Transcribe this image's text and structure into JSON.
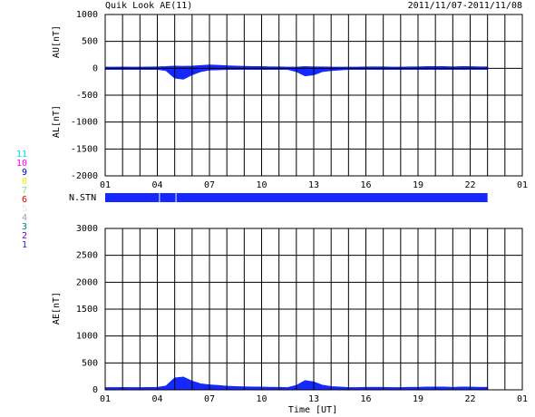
{
  "chart_data": [
    {
      "type": "area",
      "title": "Quik Look AE(11)",
      "subtitle": "2011/11/07-2011/11/08",
      "y_labels": [
        "AU[nT]",
        "AL[nT]"
      ],
      "x": [
        1,
        1.5,
        2,
        2.5,
        3,
        3.5,
        4,
        4.5,
        5,
        5.5,
        6,
        6.5,
        7,
        7.5,
        8,
        8.5,
        9,
        9.5,
        10,
        10.5,
        11,
        11.5,
        12,
        12.5,
        13,
        13.5,
        14,
        14.5,
        15,
        15.5,
        16,
        16.5,
        17,
        17.5,
        18,
        18.5,
        19,
        19.5,
        20,
        20.5,
        21,
        21.5,
        22,
        22.5,
        23
      ],
      "series": [
        {
          "name": "AU",
          "color": "#1428ff",
          "values": [
            20,
            20,
            22,
            20,
            20,
            22,
            25,
            30,
            40,
            35,
            40,
            50,
            60,
            55,
            45,
            40,
            35,
            30,
            30,
            25,
            25,
            20,
            20,
            30,
            25,
            25,
            20,
            20,
            20,
            20,
            25,
            25,
            25,
            20,
            20,
            25,
            25,
            30,
            30,
            30,
            25,
            30,
            30,
            25,
            25
          ]
        },
        {
          "name": "AL",
          "color": "#1428ff",
          "values": [
            -20,
            -20,
            -20,
            -20,
            -20,
            -20,
            -20,
            -40,
            -180,
            -200,
            -120,
            -60,
            -30,
            -25,
            -20,
            -20,
            -20,
            -20,
            -20,
            -20,
            -20,
            -20,
            -60,
            -140,
            -120,
            -60,
            -40,
            -30,
            -20,
            -20,
            -20,
            -20,
            -20,
            -20,
            -20,
            -20,
            -20,
            -20,
            -20,
            -20,
            -20,
            -20,
            -20,
            -20,
            -20
          ]
        }
      ],
      "xlim": [
        1,
        25
      ],
      "xticks": [
        {
          "value": 1,
          "label": "01"
        },
        {
          "value": 4,
          "label": "04"
        },
        {
          "value": 7,
          "label": "07"
        },
        10,
        13,
        16,
        19,
        22,
        {
          "value": 25,
          "label": "01"
        }
      ],
      "xminorticks": [
        2,
        3,
        5,
        6,
        8,
        9,
        11,
        12,
        14,
        15,
        17,
        18,
        20,
        21,
        23,
        24
      ],
      "ylim": [
        -2000,
        1000
      ],
      "yticks": [
        -2000,
        -1500,
        -1000,
        -500,
        0,
        500,
        1000
      ],
      "grid": true
    },
    {
      "type": "area",
      "x_label": "Time [UT]",
      "y_labels": [
        "AE[nT]"
      ],
      "x": [
        1,
        1.5,
        2,
        2.5,
        3,
        3.5,
        4,
        4.5,
        5,
        5.5,
        6,
        6.5,
        7,
        7.5,
        8,
        8.5,
        9,
        9.5,
        10,
        10.5,
        11,
        11.5,
        12,
        12.5,
        13,
        13.5,
        14,
        14.5,
        15,
        15.5,
        16,
        16.5,
        17,
        17.5,
        18,
        18.5,
        19,
        19.5,
        20,
        20.5,
        21,
        21.5,
        22,
        22.5,
        23
      ],
      "series": [
        {
          "name": "AE",
          "color": "#1428ff",
          "values": [
            40,
            40,
            42,
            40,
            40,
            42,
            45,
            70,
            220,
            235,
            160,
            110,
            90,
            80,
            65,
            60,
            55,
            50,
            50,
            45,
            45,
            40,
            80,
            170,
            145,
            85,
            60,
            50,
            40,
            40,
            45,
            45,
            45,
            40,
            40,
            45,
            45,
            50,
            50,
            50,
            45,
            50,
            50,
            45,
            45
          ]
        }
      ],
      "xlim": [
        1,
        25
      ],
      "xticks": [
        {
          "value": 1,
          "label": "01"
        },
        {
          "value": 4,
          "label": "04"
        },
        {
          "value": 7,
          "label": "07"
        },
        10,
        13,
        16,
        19,
        22,
        {
          "value": 25,
          "label": "01"
        }
      ],
      "xminorticks": [
        2,
        3,
        5,
        6,
        8,
        9,
        11,
        12,
        14,
        15,
        17,
        18,
        20,
        21,
        23,
        24
      ],
      "ylim": [
        0,
        3000
      ],
      "yticks": [
        0,
        500,
        1000,
        1500,
        2000,
        2500,
        3000
      ],
      "grid": true
    }
  ],
  "station_bar": {
    "label": "N.STN",
    "color": "#1428ff",
    "segments": [
      [
        1,
        4.1
      ],
      [
        4.15,
        5.05
      ],
      [
        5.1,
        23
      ]
    ]
  },
  "station_key": [
    {
      "label": "11",
      "color": "#00e0e0"
    },
    {
      "label": "10",
      "color": "#ff00ff"
    },
    {
      "label": "9",
      "color": "#0000c0"
    },
    {
      "label": "8",
      "color": "#f0f000"
    },
    {
      "label": "7",
      "color": "#80e080"
    },
    {
      "label": "6",
      "color": "#e00000"
    },
    {
      "label": "5",
      "color": "#e8e8e8"
    },
    {
      "label": "4",
      "color": "#a0a0a0"
    },
    {
      "label": "3",
      "color": "#008080"
    },
    {
      "label": "2",
      "color": "#8000a0"
    },
    {
      "label": "1",
      "color": "#2020ff"
    }
  ]
}
